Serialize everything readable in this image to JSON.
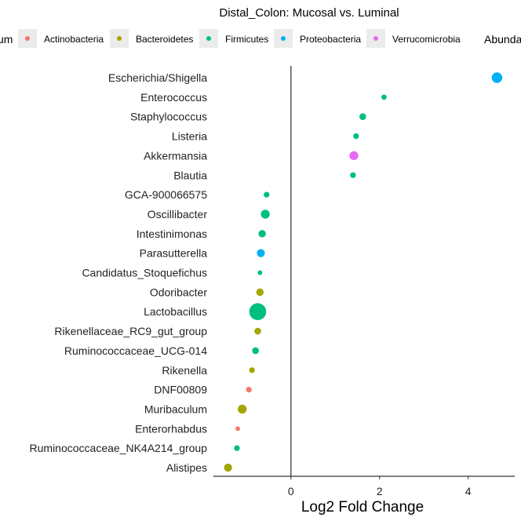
{
  "chart_data": {
    "type": "scatter",
    "title": "Distal_Colon: Mucosal vs. Luminal",
    "xlabel": "Log2 Fold Change",
    "ylabel": "",
    "xlim": [
      -1.75,
      5.05
    ],
    "xticks": [
      0,
      2,
      4
    ],
    "grid": false,
    "legend": {
      "placement": "top",
      "phylum_title_fragment": "um",
      "abundance_title_fragment": "Abunda",
      "entries": [
        {
          "name": "Actinobacteria",
          "color": "#F8766D"
        },
        {
          "name": "Bacteroidetes",
          "color": "#A3A500"
        },
        {
          "name": "Firmicutes",
          "color": "#00BF7D"
        },
        {
          "name": "Proteobacteria",
          "color": "#00B0F6"
        },
        {
          "name": "Verrucomicrobia",
          "color": "#E76BF3"
        }
      ]
    },
    "categories": [
      "Escherichia/Shigella",
      "Enterococcus",
      "Staphylococcus",
      "Listeria",
      "Akkermansia",
      "Blautia",
      "GCA-900066575",
      "Oscillibacter",
      "Intestinimonas",
      "Parasutterella",
      "Candidatus_Stoquefichus",
      "Odoribacter",
      "Lactobacillus",
      "Rikenellaceae_RC9_gut_group",
      "Ruminococcaceae_UCG-014",
      "Rikenella",
      "DNF00809",
      "Muribaculum",
      "Enterorhabdus",
      "Ruminococcaceae_NK4A214_group",
      "Alistipes"
    ],
    "points": [
      {
        "genus": "Escherichia/Shigella",
        "x": 4.65,
        "phylum": "Proteobacteria",
        "size": 5
      },
      {
        "genus": "Enterococcus",
        "x": 2.1,
        "phylum": "Firmicutes",
        "size": 2.5
      },
      {
        "genus": "Staphylococcus",
        "x": 1.62,
        "phylum": "Firmicutes",
        "size": 3.2
      },
      {
        "genus": "Listeria",
        "x": 1.47,
        "phylum": "Firmicutes",
        "size": 2.7
      },
      {
        "genus": "Akkermansia",
        "x": 1.42,
        "phylum": "Verrucomicrobia",
        "size": 4.2
      },
      {
        "genus": "Blautia",
        "x": 1.4,
        "phylum": "Firmicutes",
        "size": 2.7
      },
      {
        "genus": "GCA-900066575",
        "x": -0.55,
        "phylum": "Firmicutes",
        "size": 2.7
      },
      {
        "genus": "Oscillibacter",
        "x": -0.58,
        "phylum": "Firmicutes",
        "size": 4.2
      },
      {
        "genus": "Intestinimonas",
        "x": -0.65,
        "phylum": "Firmicutes",
        "size": 3.5
      },
      {
        "genus": "Parasutterella",
        "x": -0.68,
        "phylum": "Proteobacteria",
        "size": 3.8
      },
      {
        "genus": "Candidatus_Stoquefichus",
        "x": -0.7,
        "phylum": "Firmicutes",
        "size": 2.2
      },
      {
        "genus": "Odoribacter",
        "x": -0.7,
        "phylum": "Bacteroidetes",
        "size": 3.5
      },
      {
        "genus": "Lactobacillus",
        "x": -0.75,
        "phylum": "Firmicutes",
        "size": 8
      },
      {
        "genus": "Rikenellaceae_RC9_gut_group",
        "x": -0.75,
        "phylum": "Bacteroidetes",
        "size": 3.2
      },
      {
        "genus": "Ruminococcaceae_UCG-014",
        "x": -0.8,
        "phylum": "Firmicutes",
        "size": 3.2
      },
      {
        "genus": "Rikenella",
        "x": -0.88,
        "phylum": "Bacteroidetes",
        "size": 2.7
      },
      {
        "genus": "DNF00809",
        "x": -0.95,
        "phylum": "Actinobacteria",
        "size": 2.7
      },
      {
        "genus": "Muribaculum",
        "x": -1.1,
        "phylum": "Bacteroidetes",
        "size": 4.2
      },
      {
        "genus": "Enterorhabdus",
        "x": -1.2,
        "phylum": "Actinobacteria",
        "size": 2.2
      },
      {
        "genus": "Ruminococcaceae_NK4A214_group",
        "x": -1.22,
        "phylum": "Firmicutes",
        "size": 2.7
      },
      {
        "genus": "Alistipes",
        "x": -1.42,
        "phylum": "Bacteroidetes",
        "size": 3.8
      }
    ]
  }
}
